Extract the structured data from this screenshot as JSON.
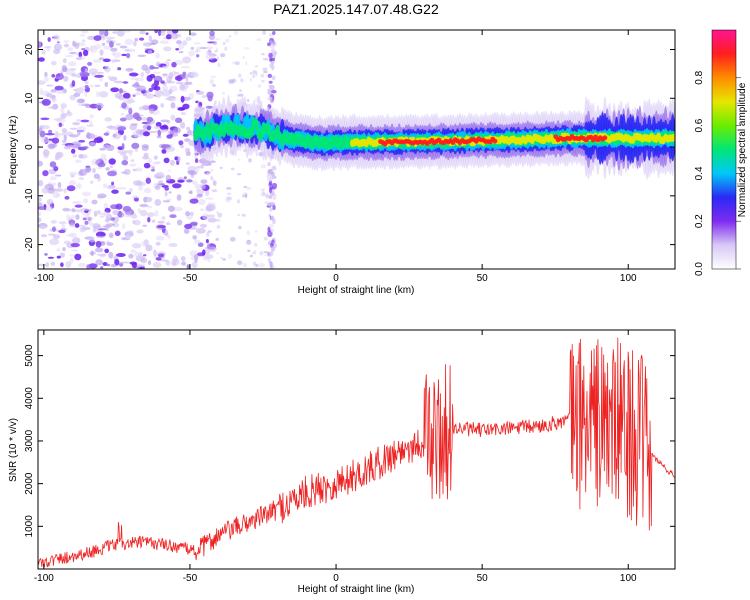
{
  "title": "PAZ1.2025.147.07.48.G22",
  "chart_data": [
    {
      "type": "heatmap",
      "xlabel": "Height of straight line (km)",
      "ylabel": "Frequency (Hz)",
      "xlim": [
        -102,
        116
      ],
      "ylim": [
        -25,
        24
      ],
      "xticks": [
        -100,
        -50,
        0,
        50,
        100
      ],
      "yticks": [
        -20,
        -10,
        0,
        10,
        20
      ],
      "colorbar": {
        "label": "Normalized spectral amplitude",
        "range": [
          0,
          1
        ],
        "ticks": [
          "0.0",
          "0.2",
          "0.4",
          "0.6",
          "0.8"
        ],
        "colormap": [
          "#ffffff",
          "#d8c8f6",
          "#7f2cf0",
          "#2a2af5",
          "#00c8f8",
          "#00e676",
          "#6bed00",
          "#e6e600",
          "#ff8c00",
          "#ff1e1e",
          "#ff1493"
        ]
      },
      "ridge": {
        "x": [
          -45,
          -35,
          -25,
          -15,
          -5,
          5,
          20,
          40,
          60,
          80,
          100,
          116
        ],
        "y": [
          3,
          4.5,
          3.5,
          1.5,
          0.8,
          1.0,
          1.0,
          1.2,
          1.5,
          1.8,
          1.8,
          1.8
        ]
      }
    },
    {
      "type": "line",
      "xlabel": "Height of straight line (km)",
      "ylabel": "SNR (10 * v/v)",
      "xlim": [
        -102,
        116
      ],
      "ylim": [
        0,
        5600
      ],
      "xticks": [
        -100,
        -50,
        0,
        50,
        100
      ],
      "yticks": [
        1000,
        2000,
        3000,
        4000,
        5000
      ],
      "color": "#ee2222",
      "trend_x": [
        -102,
        -95,
        -85,
        -75,
        -65,
        -55,
        -48,
        -40,
        -30,
        -20,
        -10,
        0,
        10,
        20,
        30,
        35,
        40,
        50,
        60,
        70,
        80,
        90,
        100,
        106,
        116
      ],
      "trend_y": [
        100,
        200,
        350,
        550,
        600,
        500,
        400,
        800,
        1100,
        1400,
        1800,
        2000,
        2300,
        2700,
        3000,
        3100,
        3300,
        3250,
        3300,
        3350,
        3500,
        3450,
        3300,
        2800,
        2150
      ]
    }
  ]
}
